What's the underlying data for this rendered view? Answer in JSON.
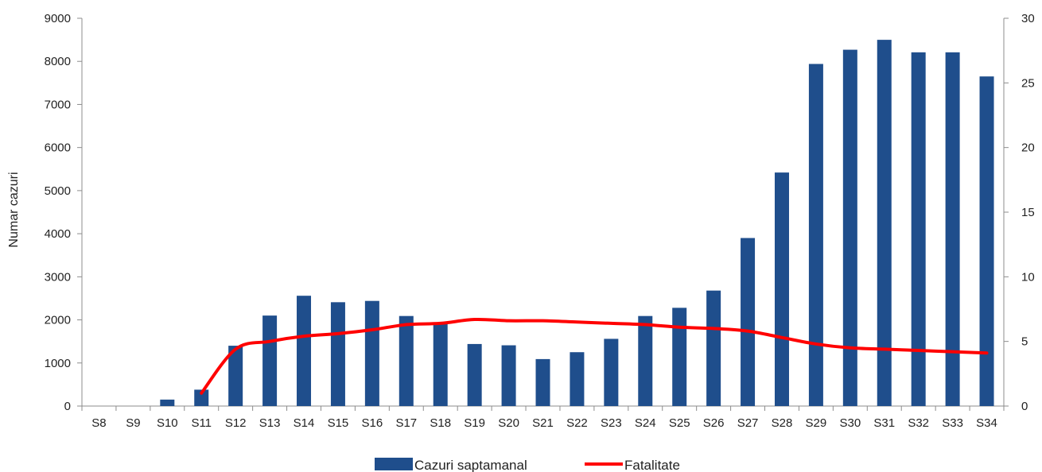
{
  "chart_data": {
    "type": "bar",
    "categories": [
      "S8",
      "S9",
      "S10",
      "S11",
      "S12",
      "S13",
      "S14",
      "S15",
      "S16",
      "S17",
      "S18",
      "S19",
      "S20",
      "S21",
      "S22",
      "S23",
      "S24",
      "S25",
      "S26",
      "S27",
      "S28",
      "S29",
      "S30",
      "S31",
      "S32",
      "S33",
      "S34"
    ],
    "series": [
      {
        "name": "Cazuri saptamanal",
        "type": "bar",
        "axis": "left",
        "color": "#1f4e8c",
        "values": [
          0,
          0,
          150,
          380,
          1400,
          2100,
          2560,
          2410,
          2440,
          2090,
          1930,
          1440,
          1410,
          1090,
          1250,
          1560,
          2090,
          2280,
          2680,
          3900,
          5420,
          7940,
          8270,
          8500,
          8210,
          8210,
          7650
        ]
      },
      {
        "name": "Fatalitate",
        "type": "line",
        "axis": "right",
        "color": "#ff0000",
        "values": [
          null,
          null,
          null,
          1.0,
          4.4,
          5.0,
          5.4,
          5.6,
          5.9,
          6.3,
          6.4,
          6.7,
          6.6,
          6.6,
          6.5,
          6.4,
          6.3,
          6.1,
          6.0,
          5.8,
          5.3,
          4.8,
          4.5,
          4.4,
          4.3,
          4.2,
          4.1
        ]
      }
    ],
    "ylabel": "Numar cazuri",
    "ylim": [
      0,
      9000
    ],
    "yticks": [
      0,
      1000,
      2000,
      3000,
      4000,
      5000,
      6000,
      7000,
      8000,
      9000
    ],
    "y2lim": [
      0,
      30
    ],
    "y2ticks": [
      0,
      5,
      10,
      15,
      20,
      25,
      30
    ],
    "grid": false,
    "legend_position": "bottom"
  }
}
